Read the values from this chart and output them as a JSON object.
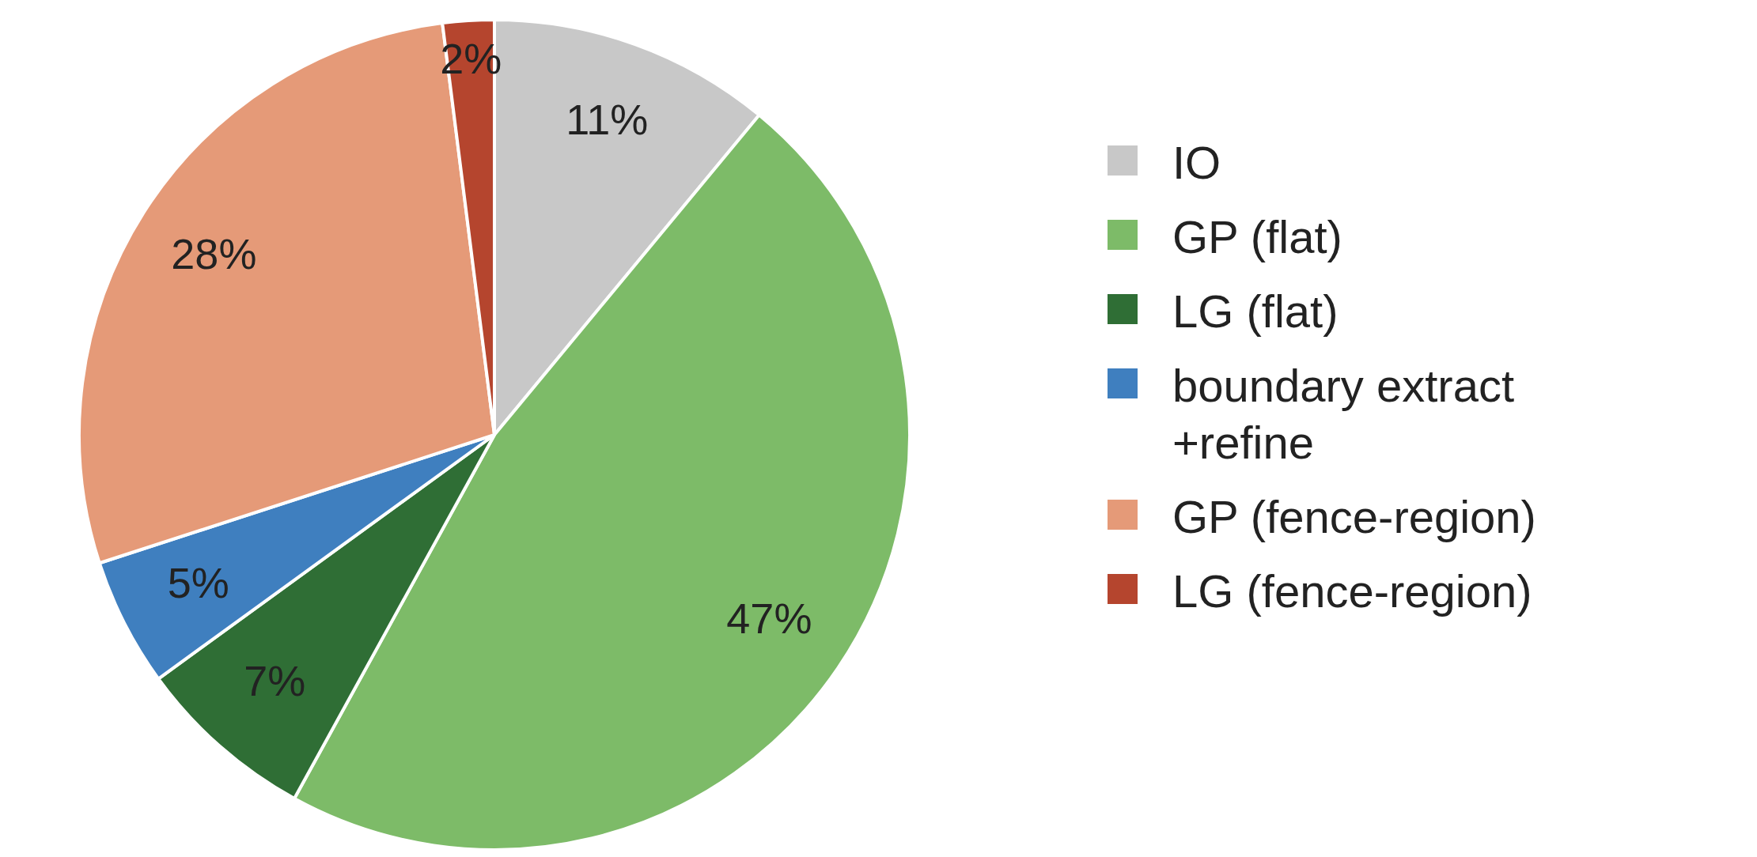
{
  "chart_data": {
    "type": "pie",
    "categories": [
      "IO",
      "GP (flat)",
      "LG (flat)",
      "boundary extract +refine",
      "GP (fence-region)",
      "LG (fence-region)"
    ],
    "values": [
      11,
      47,
      7,
      5,
      28,
      2
    ],
    "value_labels": [
      "11%",
      "47%",
      "7%",
      "5%",
      "28%",
      "2%"
    ],
    "colors": [
      "#c8c8c8",
      "#7dbb68",
      "#2f6e35",
      "#3f7fbf",
      "#e59a78",
      "#b5452e"
    ],
    "legend": "right"
  }
}
